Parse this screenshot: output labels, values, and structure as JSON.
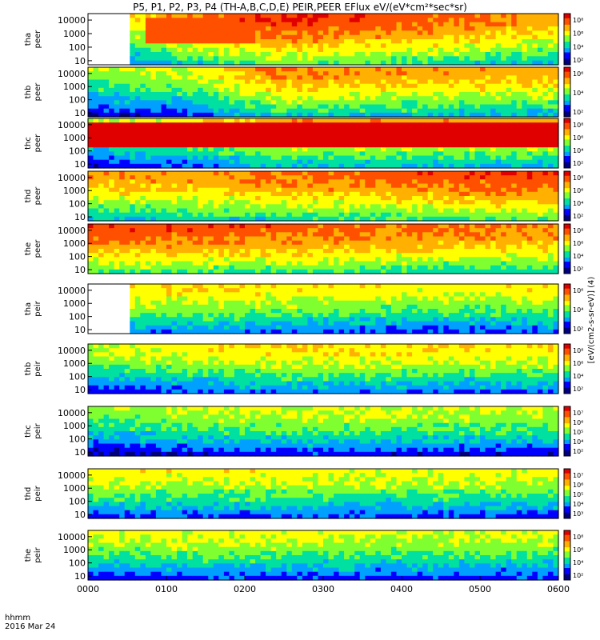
{
  "title": "P5, P1, P2, P3, P4 (TH-A,B,C,D,E) PEIR,PEER EFlux eV/(eV*cm²*sec*sr)",
  "colorbar_label": "[eV/(cm2-s-sr-eV)] (4)",
  "time_axis": {
    "label": "hhmm",
    "date": "2016 Mar 24",
    "ticks": [
      "0000",
      "0100",
      "0200",
      "0300",
      "0400",
      "0500",
      "0600"
    ]
  },
  "colors": {
    "colormap": [
      "#00007f",
      "#0000ff",
      "#00a0ff",
      "#00e0a0",
      "#80ff30",
      "#ffff00",
      "#ffb000",
      "#ff5000",
      "#e00000"
    ],
    "background": "#ffffff",
    "no_data": "#ffffff",
    "fill_low": "#000000"
  },
  "chart_data": [
    {
      "type": "heatmap",
      "ylabel": "tha peer",
      "yscale": "log",
      "ylim": [
        5,
        30000
      ],
      "yticks": [
        "10000",
        "1000",
        "100",
        "10"
      ],
      "cbar_ticks": [
        "10⁸",
        "10⁶",
        "10⁴",
        "10²"
      ],
      "data_start_hhmm": "0035",
      "note": "",
      "level_profile": [
        0.55,
        0.78,
        0.9,
        0.86,
        0.8,
        0.72
      ],
      "red_band": [
        [
          0.12,
          0.35,
          0.86
        ]
      ]
    },
    {
      "type": "heatmap",
      "ylabel": "thb peer",
      "yscale": "log",
      "ylim": [
        5,
        30000
      ],
      "yticks": [
        "10000",
        "1000",
        "100",
        "10"
      ],
      "cbar_ticks": [
        "10⁶",
        "10⁴",
        "10²"
      ],
      "data_start_hhmm": "0000",
      "note": "",
      "level_profile": [
        0.52,
        0.58,
        0.78,
        0.76,
        0.74,
        0.72
      ],
      "red_band": []
    },
    {
      "type": "heatmap",
      "ylabel": "thc peer",
      "yscale": "log",
      "ylim": [
        5,
        30000
      ],
      "yticks": [
        "10000",
        "1000",
        "100",
        "10"
      ],
      "cbar_ticks": [
        "10⁸",
        "10⁶",
        "10⁴",
        "10²"
      ],
      "data_start_hhmm": "0000",
      "note": "",
      "level_profile": [
        0.55,
        0.62,
        0.74,
        0.74,
        0.72,
        0.72
      ],
      "red_band": [
        [
          0.0,
          1.0,
          0.9
        ]
      ]
    },
    {
      "type": "heatmap",
      "ylabel": "thd peer",
      "yscale": "log",
      "ylim": [
        5,
        30000
      ],
      "yticks": [
        "10000",
        "1000",
        "100",
        "10"
      ],
      "cbar_ticks": [
        "10⁸",
        "10⁶",
        "10⁴",
        "10²"
      ],
      "data_start_hhmm": "0000",
      "note": "",
      "level_profile": [
        0.74,
        0.76,
        0.8,
        0.82,
        0.86,
        0.88
      ],
      "red_band": []
    },
    {
      "type": "heatmap",
      "ylabel": "the peer",
      "yscale": "log",
      "ylim": [
        5,
        30000
      ],
      "yticks": [
        "10000",
        "1000",
        "100",
        "10"
      ],
      "cbar_ticks": [
        "10⁸",
        "10⁶",
        "10⁴",
        "10²"
      ],
      "data_start_hhmm": "0000",
      "note": "",
      "level_profile": [
        0.86,
        0.86,
        0.84,
        0.82,
        0.8,
        0.8
      ],
      "red_band": []
    },
    {
      "type": "heatmap",
      "ylabel": "tha peir",
      "yscale": "log",
      "ylim": [
        5,
        30000
      ],
      "yticks": [
        "10000",
        "1000",
        "100",
        "10"
      ],
      "cbar_ticks": [
        "10⁶",
        "10⁴",
        "10²"
      ],
      "data_start_hhmm": "0035",
      "note": "",
      "level_profile": [
        0.66,
        0.66,
        0.64,
        0.62,
        0.6,
        0.64
      ],
      "red_band": []
    },
    {
      "type": "heatmap",
      "ylabel": "thb peir",
      "yscale": "log",
      "ylim": [
        5,
        30000
      ],
      "yticks": [
        "10000",
        "1000",
        "100",
        "10"
      ],
      "cbar_ticks": [
        "10⁸",
        "10⁶",
        "10⁴",
        "10²"
      ],
      "data_start_hhmm": "0000",
      "note": "",
      "level_profile": [
        0.56,
        0.62,
        0.66,
        0.66,
        0.64,
        0.64
      ],
      "red_band": []
    },
    {
      "type": "heatmap",
      "ylabel": "thc peir",
      "yscale": "log",
      "ylim": [
        5,
        30000
      ],
      "yticks": [
        "10000",
        "1000",
        "100",
        "10"
      ],
      "cbar_ticks": [
        "10⁷",
        "10⁶",
        "10⁵",
        "10⁴",
        "10²"
      ],
      "data_start_hhmm": "0000",
      "note": "",
      "level_profile": [
        0.5,
        0.56,
        0.58,
        0.58,
        0.56,
        0.56
      ],
      "red_band": []
    },
    {
      "type": "heatmap",
      "ylabel": "thd peir",
      "yscale": "log",
      "ylim": [
        5,
        30000
      ],
      "yticks": [
        "10000",
        "1000",
        "100",
        "10"
      ],
      "cbar_ticks": [
        "10⁷",
        "10⁶",
        "10⁵",
        "10⁴",
        "10³"
      ],
      "data_start_hhmm": "0000",
      "note": "",
      "level_profile": [
        0.62,
        0.62,
        0.62,
        0.6,
        0.6,
        0.6
      ],
      "red_band": []
    },
    {
      "type": "heatmap",
      "ylabel": "the peir",
      "yscale": "log",
      "ylim": [
        5,
        30000
      ],
      "yticks": [
        "10000",
        "1000",
        "100",
        "10"
      ],
      "cbar_ticks": [
        "10⁸",
        "10⁶",
        "10⁴",
        "10²"
      ],
      "data_start_hhmm": "0000",
      "note": "",
      "level_profile": [
        0.58,
        0.6,
        0.6,
        0.58,
        0.58,
        0.58
      ],
      "red_band": []
    }
  ]
}
